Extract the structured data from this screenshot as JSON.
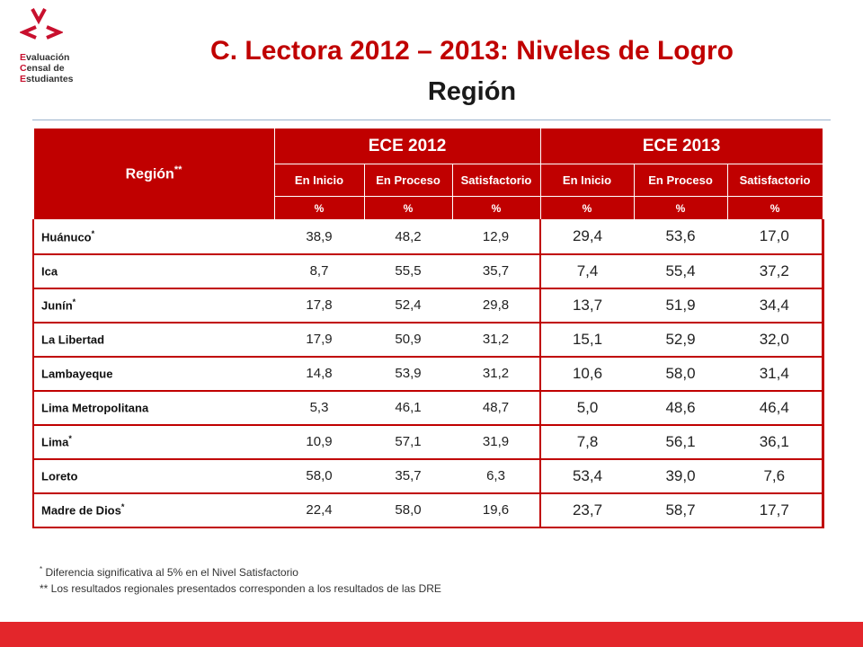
{
  "logo": {
    "lines": [
      {
        "cap": "E",
        "rest": "valuación"
      },
      {
        "cap": "C",
        "rest": "ensal de"
      },
      {
        "cap": "E",
        "rest": "studiantes"
      }
    ],
    "color": "#c8102e"
  },
  "slide": {
    "title": "C. Lectora 2012 – 2013: Niveles de Logro",
    "subtitle": "Región"
  },
  "table": {
    "region_header": "Región",
    "region_header_mark": "**",
    "years": [
      "ECE 2012",
      "ECE 2013"
    ],
    "levels": [
      "En Inicio",
      "En Proceso",
      "Satisfactorio",
      "En Inicio",
      "En Proceso",
      "Satisfactorio"
    ],
    "unit": "%",
    "rows": [
      {
        "region": "Huánuco",
        "mark": "*",
        "ece2012": [
          "38,9",
          "48,2",
          "12,9"
        ],
        "ece2013": [
          "29,4",
          "53,6",
          "17,0"
        ]
      },
      {
        "region": "Ica",
        "mark": "",
        "ece2012": [
          "8,7",
          "55,5",
          "35,7"
        ],
        "ece2013": [
          "7,4",
          "55,4",
          "37,2"
        ]
      },
      {
        "region": "Junín",
        "mark": "*",
        "ece2012": [
          "17,8",
          "52,4",
          "29,8"
        ],
        "ece2013": [
          "13,7",
          "51,9",
          "34,4"
        ]
      },
      {
        "region": "La Libertad",
        "mark": "",
        "ece2012": [
          "17,9",
          "50,9",
          "31,2"
        ],
        "ece2013": [
          "15,1",
          "52,9",
          "32,0"
        ]
      },
      {
        "region": "Lambayeque",
        "mark": "",
        "ece2012": [
          "14,8",
          "53,9",
          "31,2"
        ],
        "ece2013": [
          "10,6",
          "58,0",
          "31,4"
        ]
      },
      {
        "region": "Lima Metropolitana",
        "mark": "",
        "ece2012": [
          "5,3",
          "46,1",
          "48,7"
        ],
        "ece2013": [
          "5,0",
          "48,6",
          "46,4"
        ]
      },
      {
        "region": "Lima",
        "mark": "*",
        "ece2012": [
          "10,9",
          "57,1",
          "31,9"
        ],
        "ece2013": [
          "7,8",
          "56,1",
          "36,1"
        ]
      },
      {
        "region": "Loreto",
        "mark": "",
        "ece2012": [
          "58,0",
          "35,7",
          "6,3"
        ],
        "ece2013": [
          "53,4",
          "39,0",
          "7,6"
        ]
      },
      {
        "region": "Madre de Dios",
        "mark": "*",
        "ece2012": [
          "22,4",
          "58,0",
          "19,6"
        ],
        "ece2013": [
          "23,7",
          "58,7",
          "17,7"
        ]
      }
    ]
  },
  "notes": {
    "note1_mark": "*",
    "note1": " Diferencia significativa al 5% en el Nivel Satisfactorio",
    "note2": "** Los resultados regionales presentados corresponden a los resultados de las DRE"
  },
  "colors": {
    "header_red": "#c00000",
    "footer_red": "#e3262b"
  }
}
